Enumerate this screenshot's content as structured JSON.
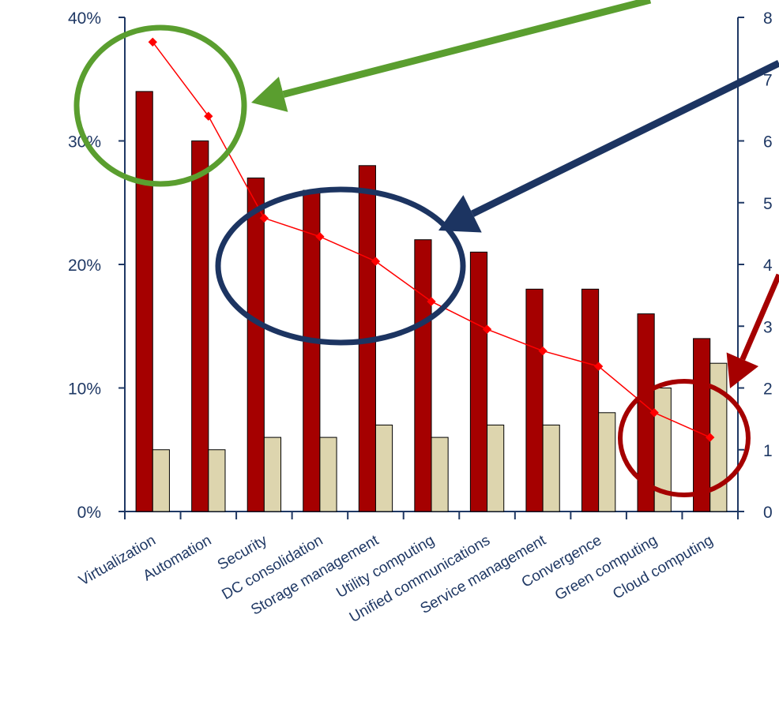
{
  "chart_data": {
    "type": "bar",
    "categories": [
      "Virtualization",
      "Automation",
      "Security",
      "DC consolidation",
      "Storage management",
      "Utility computing",
      "Unified communications",
      "Service management",
      "Convergence",
      "Green computing",
      "Cloud computing"
    ],
    "series": [
      {
        "values": [
          34,
          30,
          27,
          26,
          28,
          22,
          21,
          18,
          18,
          16,
          14
        ],
        "color": "#a50000",
        "kind": "bar",
        "axis": "left"
      },
      {
        "values": [
          5,
          5,
          6,
          6,
          7,
          6,
          7,
          7,
          8,
          10,
          12
        ],
        "color": "#ddd5ae",
        "kind": "bar",
        "axis": "left"
      },
      {
        "values": [
          7.6,
          6.4,
          4.75,
          4.45,
          4.05,
          3.4,
          2.95,
          2.6,
          2.35,
          1.6,
          1.2
        ],
        "color": "#ff0000",
        "kind": "line",
        "axis": "right"
      }
    ],
    "y_left": {
      "ylim": [
        0,
        40
      ],
      "ticks": [
        "0%",
        "10%",
        "20%",
        "30%",
        "40%"
      ]
    },
    "y_right": {
      "ylim": [
        0,
        8
      ],
      "ticks": [
        "0",
        "1",
        "2",
        "3",
        "4",
        "5",
        "6",
        "7",
        "8"
      ]
    },
    "annotations": [
      {
        "shape": "ellipse",
        "color": "#5a9e2f",
        "target": "Virtualization-Automation"
      },
      {
        "shape": "ellipse",
        "color": "#1c3461",
        "target": "Security-Utility computing"
      },
      {
        "shape": "ellipse",
        "color": "#a50000",
        "target": "Green computing-Cloud computing"
      },
      {
        "shape": "arrow",
        "color": "#5a9e2f"
      },
      {
        "shape": "arrow",
        "color": "#1c3461"
      },
      {
        "shape": "arrow",
        "color": "#a50000"
      }
    ],
    "grid": false,
    "legend": "none"
  }
}
